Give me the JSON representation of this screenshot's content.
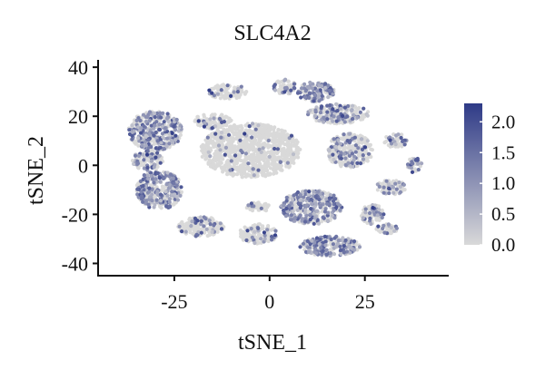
{
  "chart_data": {
    "type": "scatter",
    "title": "SLC4A2",
    "xlabel": "tSNE_1",
    "ylabel": "tSNE_2",
    "xlim": [
      -45,
      47
    ],
    "ylim": [
      -45,
      43
    ],
    "xticks": [
      -25,
      0,
      25
    ],
    "yticks": [
      40,
      20,
      0,
      -20,
      -40
    ],
    "xtick_labels": [
      "-25",
      "0",
      "25"
    ],
    "ytick_labels": [
      "40",
      "20",
      "0",
      "-20",
      "-40"
    ],
    "grid": false,
    "legend": {
      "type": "colorbar",
      "placement": "right",
      "min": 0.0,
      "max": 2.3,
      "ticks": [
        2.0,
        1.5,
        1.0,
        0.5,
        0.0
      ],
      "tick_labels": [
        "2.0",
        "1.5",
        "1.0",
        "0.5",
        "0.0"
      ],
      "color_low": "#d9d9d9",
      "color_high": "#2e3a87"
    },
    "clusters": [
      {
        "center": [
          -5,
          6
        ],
        "radius": [
          13,
          11
        ],
        "expr_frac": 0.04
      },
      {
        "center": [
          -30,
          14
        ],
        "radius": [
          7,
          8
        ],
        "expr_frac": 0.45
      },
      {
        "center": [
          -29,
          -10
        ],
        "radius": [
          6,
          8
        ],
        "expr_frac": 0.5
      },
      {
        "center": [
          -32,
          2
        ],
        "radius": [
          4,
          4
        ],
        "expr_frac": 0.35
      },
      {
        "center": [
          -11,
          30
        ],
        "radius": [
          5,
          3
        ],
        "expr_frac": 0.1
      },
      {
        "center": [
          4,
          32
        ],
        "radius": [
          3,
          3
        ],
        "expr_frac": 0.3
      },
      {
        "center": [
          12,
          30
        ],
        "radius": [
          5,
          4
        ],
        "expr_frac": 0.55
      },
      {
        "center": [
          18,
          21
        ],
        "radius": [
          8,
          4
        ],
        "expr_frac": 0.3
      },
      {
        "center": [
          -15,
          18
        ],
        "radius": [
          5,
          3
        ],
        "expr_frac": 0.1
      },
      {
        "center": [
          21,
          6
        ],
        "radius": [
          6,
          7
        ],
        "expr_frac": 0.25
      },
      {
        "center": [
          11,
          -17
        ],
        "radius": [
          8,
          7
        ],
        "expr_frac": 0.5
      },
      {
        "center": [
          16,
          -33
        ],
        "radius": [
          8,
          4
        ],
        "expr_frac": 0.6
      },
      {
        "center": [
          27,
          -20
        ],
        "radius": [
          3,
          4
        ],
        "expr_frac": 0.35
      },
      {
        "center": [
          -18,
          -25
        ],
        "radius": [
          6,
          4
        ],
        "expr_frac": 0.2
      },
      {
        "center": [
          -3,
          -28
        ],
        "radius": [
          5,
          4
        ],
        "expr_frac": 0.2
      },
      {
        "center": [
          -3,
          -17
        ],
        "radius": [
          3,
          2
        ],
        "expr_frac": 0.1
      },
      {
        "center": [
          33,
          10
        ],
        "radius": [
          3,
          3
        ],
        "expr_frac": 0.25
      },
      {
        "center": [
          38,
          0
        ],
        "radius": [
          2,
          3
        ],
        "expr_frac": 0.3
      },
      {
        "center": [
          32,
          -9
        ],
        "radius": [
          4,
          3
        ],
        "expr_frac": 0.25
      },
      {
        "center": [
          31,
          -26
        ],
        "radius": [
          3,
          2
        ],
        "expr_frac": 0.3
      }
    ]
  }
}
